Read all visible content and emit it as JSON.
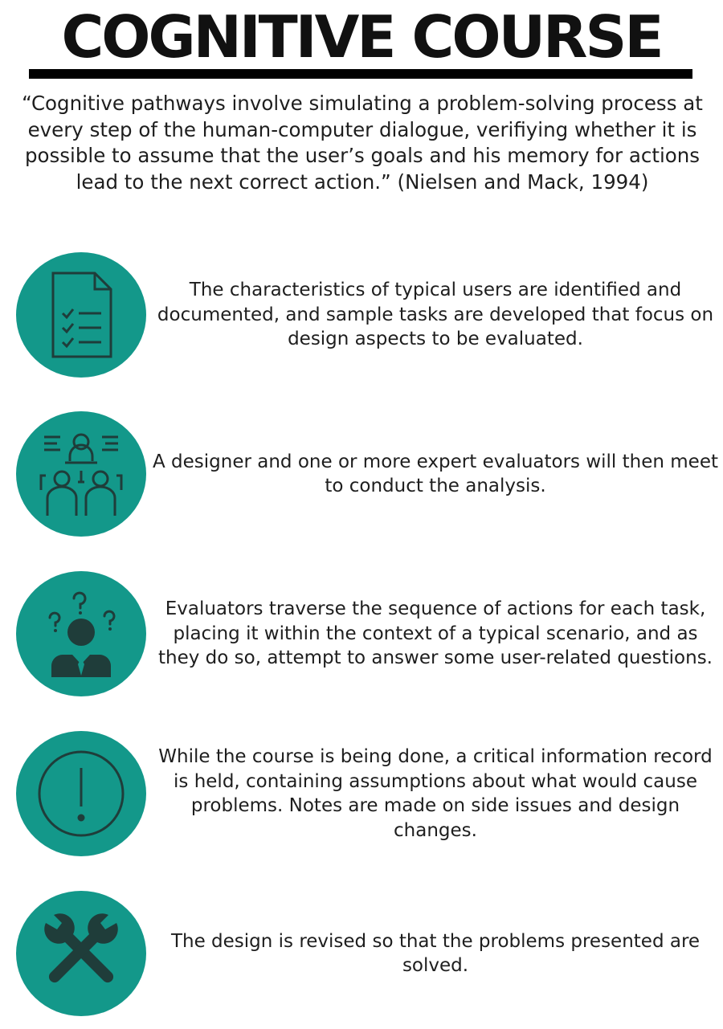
{
  "header": {
    "title": "COGNITIVE COURSE",
    "quote": "“Cognitive pathways involve simulating a problem-solving process at every step of the human-computer dialogue, verifiying whether it is possible to assume that the user’s goals and his memory for actions lead to the next correct action.” (Nielsen and Mack, 1994)"
  },
  "colors": {
    "accent": "#13988a",
    "icon": "#1f3d3a",
    "title": "#111111",
    "text": "#1e1e1e"
  },
  "steps": [
    {
      "icon": "checklist-document-icon",
      "text": "The characteristics of typical users are identified and documented, and sample tasks are developed that focus on design aspects to be evaluated."
    },
    {
      "icon": "meeting-people-icon",
      "text": "A designer and one or more expert evaluators will then meet to conduct the analysis."
    },
    {
      "icon": "confused-person-icon",
      "text": "Evaluators traverse the sequence of actions for each task, placing it within the context of a typical scenario, and as they do so, attempt to answer some user-related questions."
    },
    {
      "icon": "warning-exclamation-icon",
      "text": "While the course is being done, a critical information record is held, containing assumptions about what would cause problems. Notes are made on side issues and design changes."
    },
    {
      "icon": "crossed-wrenches-icon",
      "text": "The design is revised so that the problems presented are solved."
    }
  ]
}
